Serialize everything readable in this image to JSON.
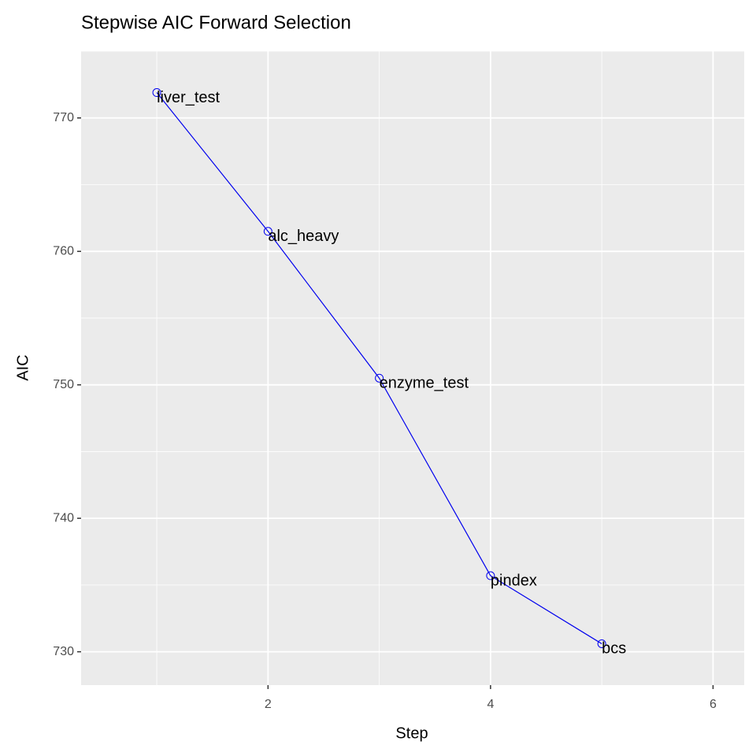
{
  "chart_data": {
    "type": "line",
    "title": "Stepwise AIC Forward Selection",
    "x_label": "Step",
    "y_label": "AIC",
    "x": [
      1,
      2,
      3,
      4,
      5
    ],
    "series": [
      {
        "name": "AIC",
        "color": "#0000ee",
        "values": [
          771.9,
          761.5,
          750.5,
          735.7,
          730.6
        ],
        "labels": [
          "liver_test",
          "alc_heavy",
          "enzyme_test",
          "pindex",
          "bcs"
        ]
      }
    ],
    "xlim": [
      0.32,
      6.28
    ],
    "xticks": [
      2,
      4,
      6
    ],
    "ylim": [
      727.5,
      775
    ],
    "yticks": [
      730,
      740,
      750,
      760,
      770
    ],
    "grid": true
  }
}
